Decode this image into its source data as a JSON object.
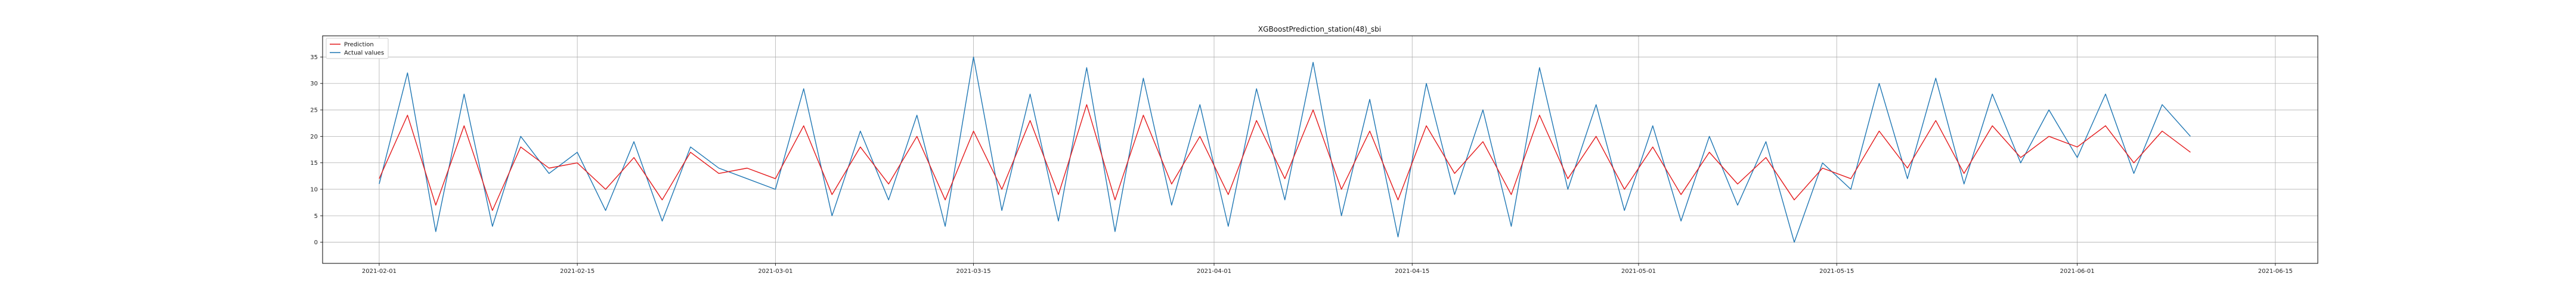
{
  "chart_data": {
    "type": "line",
    "title": "XGBoostPrediction_station(48)_sbi",
    "xlabel": "",
    "ylabel": "",
    "x_range": [
      "2021-01-28",
      "2021-06-18"
    ],
    "ylim": [
      -4,
      39
    ],
    "x_ticks": [
      "2021-02-01",
      "2021-02-15",
      "2021-03-01",
      "2021-03-15",
      "2021-04-01",
      "2021-04-15",
      "2021-05-01",
      "2021-05-15",
      "2021-06-01",
      "2021-06-15"
    ],
    "y_ticks": [
      0,
      5,
      10,
      15,
      20,
      25,
      30,
      35
    ],
    "grid": true,
    "legend_position": "upper-left",
    "series": [
      {
        "name": "Prediction",
        "color": "#e41a1c",
        "x": [
          "2021-02-01",
          "2021-02-03",
          "2021-02-05",
          "2021-02-07",
          "2021-02-09",
          "2021-02-11",
          "2021-02-13",
          "2021-02-15",
          "2021-02-17",
          "2021-02-19",
          "2021-02-21",
          "2021-02-23",
          "2021-02-25",
          "2021-02-27",
          "2021-03-01",
          "2021-03-03",
          "2021-03-05",
          "2021-03-07",
          "2021-03-09",
          "2021-03-11",
          "2021-03-13",
          "2021-03-15",
          "2021-03-17",
          "2021-03-19",
          "2021-03-21",
          "2021-03-23",
          "2021-03-25",
          "2021-03-27",
          "2021-03-29",
          "2021-03-31",
          "2021-04-02",
          "2021-04-04",
          "2021-04-06",
          "2021-04-08",
          "2021-04-10",
          "2021-04-12",
          "2021-04-14",
          "2021-04-16",
          "2021-04-18",
          "2021-04-20",
          "2021-04-22",
          "2021-04-24",
          "2021-04-26",
          "2021-04-28",
          "2021-04-30",
          "2021-05-02",
          "2021-05-04",
          "2021-05-06",
          "2021-05-08",
          "2021-05-10",
          "2021-05-12",
          "2021-05-14",
          "2021-05-16",
          "2021-05-18",
          "2021-05-20",
          "2021-05-22",
          "2021-05-24",
          "2021-05-26",
          "2021-05-28",
          "2021-05-30",
          "2021-06-01",
          "2021-06-03",
          "2021-06-05",
          "2021-06-07",
          "2021-06-09"
        ],
        "values": [
          12,
          24,
          7,
          22,
          6,
          18,
          14,
          15,
          10,
          16,
          8,
          17,
          13,
          14,
          12,
          22,
          9,
          18,
          11,
          20,
          8,
          21,
          10,
          23,
          9,
          26,
          8,
          24,
          11,
          20,
          9,
          23,
          12,
          25,
          10,
          21,
          8,
          22,
          13,
          19,
          9,
          24,
          12,
          20,
          10,
          18,
          9,
          17,
          11,
          16,
          8,
          14,
          12,
          21,
          14,
          23,
          13,
          22,
          16,
          20,
          18,
          22,
          15,
          21,
          17
        ]
      },
      {
        "name": "Actual values",
        "color": "#1f77b4",
        "x": [
          "2021-02-01",
          "2021-02-03",
          "2021-02-05",
          "2021-02-07",
          "2021-02-09",
          "2021-02-11",
          "2021-02-13",
          "2021-02-15",
          "2021-02-17",
          "2021-02-19",
          "2021-02-21",
          "2021-02-23",
          "2021-02-25",
          "2021-02-27",
          "2021-03-01",
          "2021-03-03",
          "2021-03-05",
          "2021-03-07",
          "2021-03-09",
          "2021-03-11",
          "2021-03-13",
          "2021-03-15",
          "2021-03-17",
          "2021-03-19",
          "2021-03-21",
          "2021-03-23",
          "2021-03-25",
          "2021-03-27",
          "2021-03-29",
          "2021-03-31",
          "2021-04-02",
          "2021-04-04",
          "2021-04-06",
          "2021-04-08",
          "2021-04-10",
          "2021-04-12",
          "2021-04-14",
          "2021-04-16",
          "2021-04-18",
          "2021-04-20",
          "2021-04-22",
          "2021-04-24",
          "2021-04-26",
          "2021-04-28",
          "2021-04-30",
          "2021-05-02",
          "2021-05-04",
          "2021-05-06",
          "2021-05-08",
          "2021-05-10",
          "2021-05-12",
          "2021-05-14",
          "2021-05-16",
          "2021-05-18",
          "2021-05-20",
          "2021-05-22",
          "2021-05-24",
          "2021-05-26",
          "2021-05-28",
          "2021-05-30",
          "2021-06-01",
          "2021-06-03",
          "2021-06-05",
          "2021-06-07",
          "2021-06-09"
        ],
        "values": [
          11,
          32,
          2,
          28,
          3,
          20,
          13,
          17,
          6,
          19,
          4,
          18,
          14,
          12,
          10,
          29,
          5,
          21,
          8,
          24,
          3,
          35,
          6,
          28,
          4,
          33,
          2,
          31,
          7,
          26,
          3,
          29,
          8,
          34,
          5,
          27,
          1,
          30,
          9,
          25,
          3,
          33,
          10,
          26,
          6,
          22,
          4,
          20,
          7,
          19,
          0,
          15,
          10,
          30,
          12,
          31,
          11,
          28,
          15,
          25,
          16,
          28,
          13,
          26,
          20
        ]
      }
    ]
  }
}
